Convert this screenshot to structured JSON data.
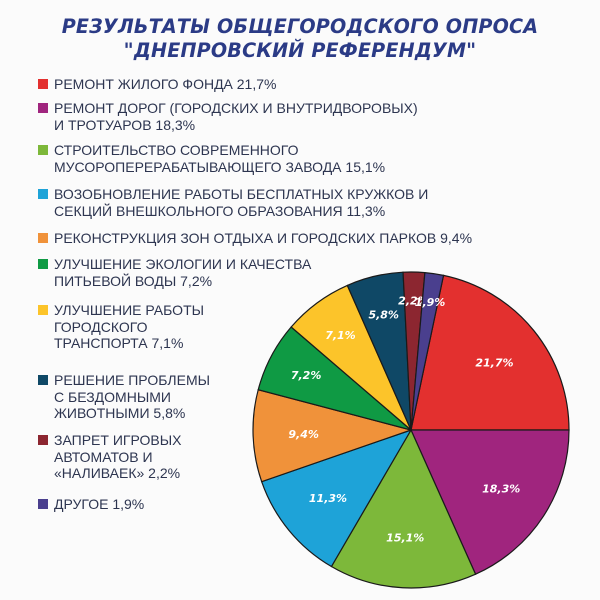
{
  "title": {
    "line1": "РЕЗУЛЬТАТЫ ОБЩЕГОРОДСКОГО ОПРОСА",
    "line2": "\"ДНЕПРОВСКИЙ РЕФЕРЕНДУМ\""
  },
  "legend": [
    {
      "text": "РЕМОНТ ЖИЛОГО ФОНДА  21,7%",
      "color": "#e3302f"
    },
    {
      "text": "РЕМОНТ ДОРОГ (ГОРОДСКИХ И ВНУТРИДВОРОВЫХ)\nИ ТРОТУАРОВ  18,3%",
      "color": "#a0257e"
    },
    {
      "text": "СТРОИТЕЛЬСТВО СОВРЕМЕННОГО\nМУСОРОПЕРЕРАБАТЫВАЮЩЕГО ЗАВОДА  15,1%",
      "color": "#7db83a"
    },
    {
      "text": "ВОЗОБНОВЛЕНИЕ РАБОТЫ БЕСПЛАТНЫХ КРУЖКОВ И\nСЕКЦИЙ ВНЕШКОЛЬНОГО ОБРАЗОВАНИЯ  11,3%",
      "color": "#1ea3d8"
    },
    {
      "text": "РЕКОНСТРУКЦИЯ ЗОН ОТДЫХА И ГОРОДСКИХ ПАРКОВ  9,4%",
      "color": "#f0923a"
    },
    {
      "text": "УЛУЧШЕНИЕ ЭКОЛОГИИ И КАЧЕСТВА\nПИТЬЕВОЙ ВОДЫ  7,2%",
      "color": "#0f9a44"
    },
    {
      "text": "УЛУЧШЕНИЕ РАБОТЫ\nГОРОДСКОГО\nТРАНСПОРТА  7,1%",
      "color": "#fcc42a"
    },
    {
      "text": "РЕШЕНИЕ ПРОБЛЕМЫ\nС БЕЗДОМНЫМИ\nЖИВОТНЫМИ  5,8%",
      "color": "#0f4866"
    },
    {
      "text": "ЗАПРЕТ ИГРОВЫХ\nАВТОМАТОВ И\n«НАЛИВАЕК»  2,2%",
      "color": "#8c2630"
    },
    {
      "text": "ДРУГОЕ  1,9%",
      "color": "#4a3f8e"
    }
  ],
  "chart_data": {
    "type": "pie",
    "title": "РЕЗУЛЬТАТЫ ОБЩЕГОРОДСКОГО ОПРОСА \"ДНЕПРОВСКИЙ РЕФЕРЕНДУМ\"",
    "categories": [
      "РЕМОНТ ЖИЛОГО ФОНДА",
      "РЕМОНТ ДОРОГ (ГОРОДСКИХ И ВНУТРИДВОРОВЫХ) И ТРОТУАРОВ",
      "СТРОИТЕЛЬСТВО СОВРЕМЕННОГО МУСОРОПЕРЕРАБАТЫВАЮЩЕГО ЗАВОДА",
      "ВОЗОБНОВЛЕНИЕ РАБОТЫ БЕСПЛАТНЫХ КРУЖКОВ И СЕКЦИЙ ВНЕШКОЛЬНОГО ОБРАЗОВАНИЯ",
      "РЕКОНСТРУКЦИЯ ЗОН ОТДЫХА И ГОРОДСКИХ ПАРКОВ",
      "УЛУЧШЕНИЕ ЭКОЛОГИИ И КАЧЕСТВА ПИТЬЕВОЙ ВОДЫ",
      "УЛУЧШЕНИЕ РАБОТЫ ГОРОДСКОГО ТРАНСПОРТА",
      "РЕШЕНИЕ ПРОБЛЕМЫ С БЕЗДОМНЫМИ ЖИВОТНЫМИ",
      "ЗАПРЕТ ИГРОВЫХ АВТОМАТОВ И «НАЛИВАЕК»",
      "ДРУГОЕ"
    ],
    "values": [
      21.7,
      18.3,
      15.1,
      11.3,
      9.4,
      7.2,
      7.1,
      5.8,
      2.2,
      1.9
    ],
    "labels": [
      "21,7%",
      "18,3%",
      "15,1%",
      "11,3%",
      "9,4%",
      "7,2%",
      "7,1%",
      "5,8%",
      "2,2%",
      "1,9%"
    ],
    "colors": [
      "#e3302f",
      "#a0257e",
      "#7db83a",
      "#1ea3d8",
      "#f0923a",
      "#0f9a44",
      "#fcc42a",
      "#0f4866",
      "#8c2630",
      "#4a3f8e"
    ],
    "unit": "%",
    "legend_position": "left"
  }
}
